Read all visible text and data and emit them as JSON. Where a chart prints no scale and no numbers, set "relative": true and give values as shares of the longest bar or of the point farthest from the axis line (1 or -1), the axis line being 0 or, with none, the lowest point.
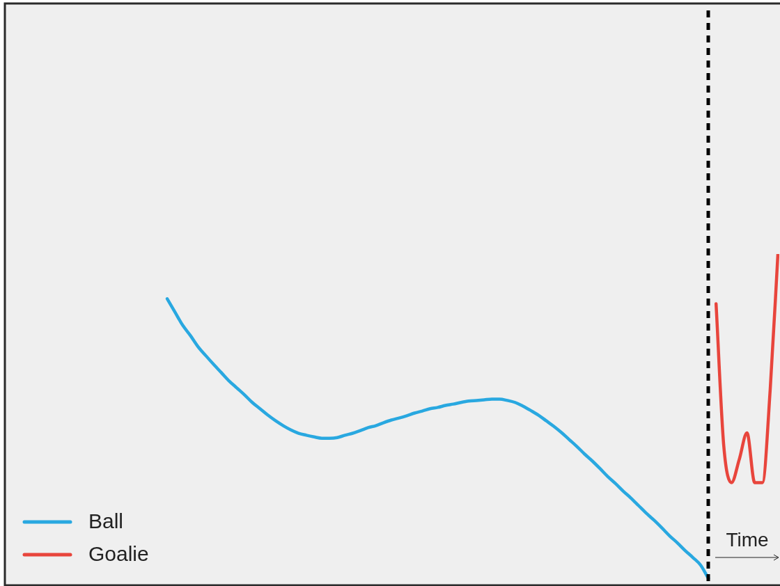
{
  "chart_data": {
    "type": "line",
    "relative": true,
    "legend": "bottom left",
    "line_style": "solid",
    "marker": "none",
    "categories": [
      null,
      null,
      null,
      null,
      null,
      null,
      null,
      null,
      null,
      null,
      null,
      null,
      null,
      null,
      null,
      null,
      null,
      null,
      null,
      null,
      null,
      null,
      null,
      null,
      null,
      null,
      null,
      null,
      null,
      null,
      null,
      null,
      null,
      null,
      null,
      null,
      null,
      null,
      null,
      null,
      null,
      null,
      null,
      null,
      null,
      null,
      null,
      null,
      null,
      null,
      null,
      null,
      null,
      null,
      null,
      null,
      null,
      null,
      null,
      null,
      null,
      null,
      null,
      null,
      null,
      null,
      null,
      null,
      null,
      null,
      null,
      null,
      null,
      null,
      null,
      null,
      null,
      null,
      null,
      null,
      null,
      null,
      null,
      null,
      null,
      null,
      null,
      null,
      null,
      null,
      null,
      null,
      null,
      null,
      null,
      null,
      null,
      null,
      null,
      null,
      null
    ],
    "series": [
      {
        "name": "Ball",
        "color": "#29a8e0",
        "values": [
          null,
          null,
          null,
          null,
          null,
          null,
          null,
          null,
          null,
          null,
          null,
          null,
          null,
          null,
          null,
          null,
          null,
          null,
          null,
          null,
          null,
          0.865,
          0.825,
          0.785,
          0.754,
          0.72,
          0.693,
          0.667,
          0.642,
          0.617,
          0.596,
          0.575,
          0.552,
          0.533,
          0.514,
          0.497,
          0.482,
          0.469,
          0.459,
          0.453,
          0.448,
          0.444,
          0.444,
          0.446,
          0.453,
          0.459,
          0.467,
          0.476,
          0.482,
          0.491,
          0.499,
          0.505,
          0.512,
          0.52,
          0.526,
          0.533,
          0.537,
          0.543,
          0.547,
          0.552,
          0.556,
          0.558,
          0.56,
          0.562,
          0.562,
          0.558,
          0.552,
          0.541,
          0.528,
          0.514,
          0.497,
          0.48,
          0.461,
          0.44,
          0.419,
          0.396,
          0.375,
          0.352,
          0.328,
          0.307,
          0.284,
          0.263,
          0.24,
          0.217,
          0.196,
          0.173,
          0.149,
          0.128,
          0.105,
          0.084,
          0.061,
          0.021,
          null,
          null,
          null,
          null,
          null,
          null,
          null,
          null,
          null
        ]
      },
      {
        "name": "Goalie",
        "color": "#e8453c",
        "values": [
          null,
          null,
          null,
          null,
          null,
          null,
          null,
          null,
          null,
          null,
          null,
          null,
          null,
          null,
          null,
          null,
          null,
          null,
          null,
          null,
          null,
          null,
          null,
          null,
          null,
          null,
          null,
          null,
          null,
          null,
          null,
          null,
          null,
          null,
          null,
          null,
          null,
          null,
          null,
          null,
          null,
          null,
          null,
          null,
          null,
          null,
          null,
          null,
          null,
          null,
          null,
          null,
          null,
          null,
          null,
          null,
          null,
          null,
          null,
          null,
          null,
          null,
          null,
          null,
          null,
          null,
          null,
          null,
          null,
          null,
          null,
          null,
          null,
          null,
          null,
          null,
          null,
          null,
          null,
          null,
          null,
          null,
          null,
          null,
          null,
          null,
          null,
          null,
          null,
          null,
          null,
          null,
          0.85,
          0.42,
          0.31,
          0.38,
          0.46,
          0.31,
          0.31,
          0.59,
          1
        ]
      }
    ],
    "annotations": [
      "Time"
    ]
  }
}
